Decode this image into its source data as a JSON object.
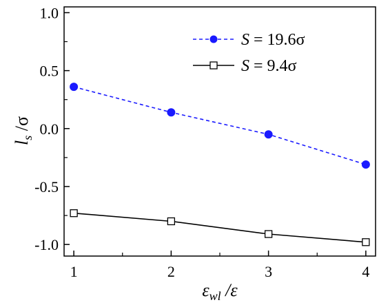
{
  "chart_data": {
    "type": "line",
    "x": [
      1,
      2,
      3,
      4
    ],
    "xlim": [
      0.9,
      4.1
    ],
    "ylim": [
      -1.1,
      1.05
    ],
    "xticks": [
      {
        "value": 1,
        "label": "1"
      },
      {
        "value": 2,
        "label": "2"
      },
      {
        "value": 3,
        "label": "3"
      },
      {
        "value": 4,
        "label": "4"
      }
    ],
    "yticks": [
      {
        "value": 1.0,
        "label": "1.0"
      },
      {
        "value": 0.5,
        "label": "0.5"
      },
      {
        "value": 0.0,
        "label": "0.0"
      },
      {
        "value": -0.5,
        "label": "-0.5"
      },
      {
        "value": -1.0,
        "label": "-1.0"
      }
    ],
    "xlabel": {
      "main": "ε",
      "sub": "wl",
      "rest": " /ε"
    },
    "ylabel": {
      "main": "l",
      "sub": "s",
      "rest": " /σ"
    },
    "grid": false,
    "legend_position": "top-right",
    "series": [
      {
        "name": "S = 19.6σ",
        "name_var": "S",
        "name_rest": " = 19.6σ",
        "values": [
          0.36,
          0.14,
          -0.05,
          -0.31
        ],
        "color": "#1a1aff",
        "line_style": "dashed",
        "marker": "filled-circle"
      },
      {
        "name": "S = 9.4σ",
        "name_var": "S",
        "name_rest": " = 9.4σ",
        "values": [
          -0.73,
          -0.8,
          -0.91,
          -0.98
        ],
        "color": "#000000",
        "line_style": "solid",
        "marker": "open-square"
      }
    ]
  }
}
